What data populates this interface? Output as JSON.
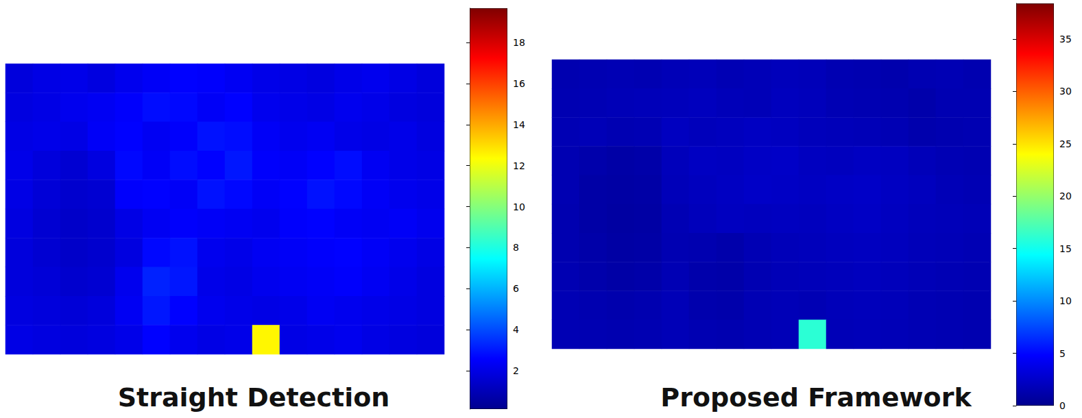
{
  "chart_data": [
    {
      "type": "heatmap",
      "title": "Straight Detection",
      "tick_labels": false,
      "cells": [
        [
          1.8,
          2.0,
          2.1,
          1.9,
          2.2,
          2.4,
          2.6,
          2.5,
          2.3,
          2.1,
          2.0,
          1.9,
          2.1,
          2.2,
          2.0,
          1.8
        ],
        [
          1.9,
          2.0,
          2.2,
          2.3,
          2.5,
          2.8,
          2.7,
          2.4,
          2.6,
          2.2,
          2.1,
          2.0,
          2.2,
          2.1,
          1.9,
          1.8
        ],
        [
          2.0,
          2.1,
          2.0,
          2.4,
          2.6,
          2.3,
          2.5,
          2.9,
          2.8,
          2.4,
          2.2,
          2.3,
          2.1,
          2.0,
          2.1,
          1.9
        ],
        [
          2.1,
          1.8,
          1.6,
          1.9,
          2.7,
          2.4,
          2.8,
          2.6,
          3.0,
          2.5,
          2.4,
          2.6,
          2.8,
          2.3,
          2.1,
          2.0
        ],
        [
          2.0,
          1.7,
          1.5,
          1.6,
          2.5,
          2.6,
          2.4,
          2.9,
          2.7,
          2.4,
          2.6,
          2.9,
          2.7,
          2.4,
          2.2,
          2.1
        ],
        [
          1.9,
          1.6,
          1.4,
          1.5,
          2.0,
          2.3,
          2.5,
          2.4,
          2.3,
          2.2,
          2.5,
          2.6,
          2.4,
          2.3,
          2.4,
          2.2
        ],
        [
          1.8,
          1.6,
          1.4,
          1.5,
          1.9,
          2.7,
          2.9,
          2.2,
          2.1,
          2.3,
          2.4,
          2.5,
          2.6,
          2.4,
          2.2,
          2.0
        ],
        [
          1.8,
          1.7,
          1.5,
          1.6,
          2.2,
          3.2,
          3.0,
          2.1,
          2.0,
          2.2,
          2.3,
          2.4,
          2.5,
          2.3,
          2.1,
          1.9
        ],
        [
          1.9,
          1.8,
          1.7,
          1.8,
          2.3,
          3.0,
          2.6,
          2.2,
          2.1,
          2.0,
          2.1,
          2.3,
          2.2,
          2.1,
          2.0,
          1.9
        ],
        [
          2.0,
          1.9,
          1.8,
          1.9,
          2.1,
          2.6,
          2.2,
          2.0,
          2.1,
          12.5,
          2.0,
          2.1,
          2.2,
          2.0,
          1.9,
          1.8
        ]
      ],
      "colorbar": {
        "range": [
          0.13,
          19.67
        ],
        "ticks": [
          2,
          4,
          6,
          8,
          10,
          12,
          14,
          16,
          18
        ]
      }
    },
    {
      "type": "heatmap",
      "title": "Proposed Framework",
      "tick_labels": false,
      "cells": [
        [
          1.4,
          1.5,
          1.6,
          1.5,
          1.7,
          1.8,
          1.6,
          1.7,
          1.9,
          1.8,
          1.5,
          1.4,
          1.3,
          1.5,
          1.6,
          1.4
        ],
        [
          1.5,
          1.6,
          1.7,
          1.8,
          1.9,
          2.0,
          1.8,
          1.7,
          2.0,
          1.9,
          1.6,
          1.5,
          1.4,
          1.2,
          1.5,
          1.5
        ],
        [
          1.6,
          1.7,
          1.5,
          1.6,
          2.1,
          1.9,
          2.0,
          2.2,
          2.1,
          1.9,
          1.8,
          1.7,
          1.6,
          1.3,
          1.4,
          1.5
        ],
        [
          1.5,
          1.2,
          1.0,
          1.1,
          1.9,
          2.2,
          2.1,
          2.3,
          2.4,
          2.1,
          2.0,
          2.2,
          2.1,
          1.8,
          1.6,
          1.5
        ],
        [
          1.5,
          1.0,
          0.9,
          1.0,
          1.8,
          2.0,
          2.2,
          2.4,
          2.3,
          2.2,
          2.3,
          2.4,
          2.2,
          2.0,
          1.7,
          1.6
        ],
        [
          1.4,
          1.0,
          0.8,
          0.9,
          1.6,
          1.9,
          2.1,
          2.0,
          2.1,
          2.0,
          2.2,
          2.3,
          2.1,
          1.9,
          1.8,
          1.7
        ],
        [
          1.4,
          1.1,
          0.9,
          1.0,
          1.5,
          1.4,
          1.2,
          1.6,
          1.8,
          1.9,
          2.0,
          2.1,
          2.0,
          1.8,
          1.7,
          1.6
        ],
        [
          1.5,
          1.2,
          1.0,
          1.1,
          1.6,
          1.2,
          1.1,
          1.5,
          1.7,
          1.8,
          1.9,
          2.0,
          1.9,
          1.7,
          1.6,
          1.5
        ],
        [
          1.6,
          1.4,
          1.3,
          1.4,
          1.7,
          1.3,
          1.2,
          1.6,
          1.7,
          1.6,
          1.8,
          1.9,
          1.8,
          1.6,
          1.5,
          1.4
        ],
        [
          1.6,
          1.5,
          1.4,
          1.5,
          1.7,
          1.5,
          1.4,
          1.6,
          1.7,
          16.0,
          1.7,
          1.8,
          1.7,
          1.6,
          1.5,
          1.4
        ]
      ],
      "colorbar": {
        "range": [
          0,
          38.4
        ],
        "ticks": [
          0,
          5,
          10,
          15,
          20,
          25,
          30,
          35
        ]
      }
    }
  ]
}
